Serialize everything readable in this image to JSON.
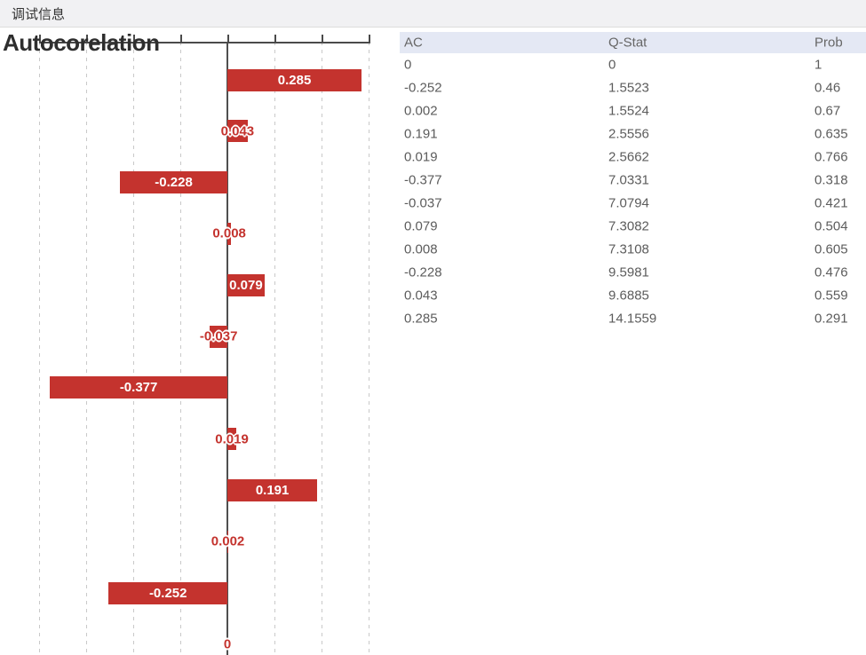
{
  "window": {
    "title": "调试信息"
  },
  "chart_data": {
    "type": "bar",
    "orientation": "horizontal",
    "title": "Autocorelation",
    "bars_top_to_bottom": [
      0.285,
      0.043,
      -0.228,
      0.008,
      0.079,
      -0.037,
      -0.377,
      0.019,
      0.191,
      0.002,
      -0.252,
      0
    ],
    "bar_labels_top_to_bottom": [
      "0.285",
      "0.043",
      "-0.228",
      "0.008",
      "0.079",
      "-0.037",
      "-0.377",
      "0.019",
      "0.191",
      "0.002",
      "-0.252",
      "0"
    ],
    "xlim": [
      -0.45,
      0.35
    ],
    "xticks": [
      -0.4,
      -0.3,
      -0.2,
      -0.1,
      0,
      0.1,
      0.2,
      0.3
    ],
    "grid": true,
    "legend": false,
    "bar_color": "#c4332e",
    "inside_label_color": "#ffffff",
    "outline_label_color": "#c4332e"
  },
  "table": {
    "columns": [
      "AC",
      "Q-Stat",
      "Prob"
    ],
    "rows": [
      [
        "0",
        "0",
        "1"
      ],
      [
        "-0.252",
        "1.5523",
        "0.46"
      ],
      [
        "0.002",
        "1.5524",
        "0.67"
      ],
      [
        "0.191",
        "2.5556",
        "0.635"
      ],
      [
        "0.019",
        "2.5662",
        "0.766"
      ],
      [
        "-0.377",
        "7.0331",
        "0.318"
      ],
      [
        "-0.037",
        "7.0794",
        "0.421"
      ],
      [
        "0.079",
        "7.3082",
        "0.504"
      ],
      [
        "0.008",
        "7.3108",
        "0.605"
      ],
      [
        "-0.228",
        "9.5981",
        "0.476"
      ],
      [
        "0.043",
        "9.6885",
        "0.559"
      ],
      [
        "0.285",
        "14.1559",
        "0.291"
      ]
    ]
  }
}
